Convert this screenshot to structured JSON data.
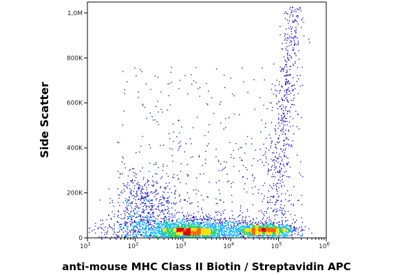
{
  "chart_data": {
    "type": "scatter",
    "plot_style": "flow cytometry density dot plot",
    "xlabel": "anti-mouse MHC Class II Biotin / Streptavidin APC",
    "ylabel": "Side Scatter",
    "x_scale": "log",
    "xlim": [
      10,
      1000000
    ],
    "ylim": [
      0,
      1048576
    ],
    "x_ticks": [
      {
        "value": 10,
        "base": "10",
        "exp": "1"
      },
      {
        "value": 100,
        "base": "10",
        "exp": "2"
      },
      {
        "value": 1000,
        "base": "10",
        "exp": "3"
      },
      {
        "value": 10000,
        "base": "10",
        "exp": "4"
      },
      {
        "value": 100000,
        "base": "10",
        "exp": "5"
      },
      {
        "value": 1000000,
        "base": "10",
        "exp": "6"
      }
    ],
    "y_ticks": [
      {
        "value": 0,
        "label": "0"
      },
      {
        "value": 200000,
        "label": "200K"
      },
      {
        "value": 400000,
        "label": "400K"
      },
      {
        "value": 600000,
        "label": "600K"
      },
      {
        "value": 800000,
        "label": "800K"
      },
      {
        "value": 1000000,
        "label": "1,0M"
      }
    ],
    "populations": [
      {
        "x_center": 1300,
        "y_center": 30000,
        "density": "highest"
      },
      {
        "x_center": 50000,
        "y_center": 35000,
        "density": "high"
      }
    ],
    "grid": false,
    "legend": "none",
    "colors": {
      "low": "#1010c8",
      "mid_low": "#00b4ff",
      "mid": "#20d060",
      "mid_high": "#ffe000",
      "high": "#ff6000",
      "peak": "#e00000"
    }
  }
}
